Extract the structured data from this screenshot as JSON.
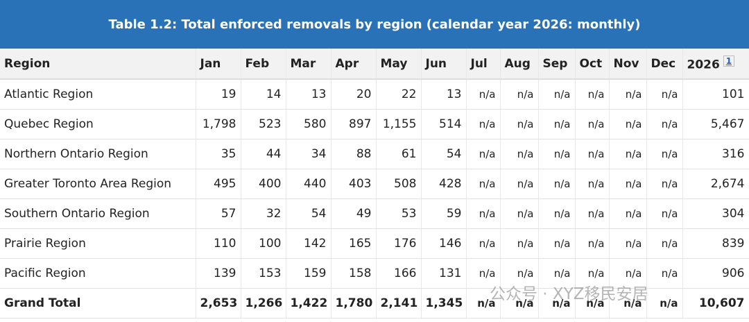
{
  "title": "Table 1.2: Total enforced removals by region (calendar year 2026: monthly)",
  "table": {
    "header": [
      "Region",
      "Jan",
      "Feb",
      "Mar",
      "Apr",
      "May",
      "Jun",
      "Jul",
      "Aug",
      "Sep",
      "Oct",
      "Nov",
      "Dec",
      "2026"
    ],
    "footnote": "1",
    "rows": [
      [
        "Atlantic Region",
        "19",
        "14",
        "13",
        "20",
        "22",
        "13",
        "n/a",
        "n/a",
        "n/a",
        "n/a",
        "n/a",
        "n/a",
        "101"
      ],
      [
        "Quebec Region",
        "1,798",
        "523",
        "580",
        "897",
        "1,155",
        "514",
        "n/a",
        "n/a",
        "n/a",
        "n/a",
        "n/a",
        "n/a",
        "5,467"
      ],
      [
        "Northern Ontario Region",
        "35",
        "44",
        "34",
        "88",
        "61",
        "54",
        "n/a",
        "n/a",
        "n/a",
        "n/a",
        "n/a",
        "n/a",
        "316"
      ],
      [
        "Greater Toronto Area Region",
        "495",
        "400",
        "440",
        "403",
        "508",
        "428",
        "n/a",
        "n/a",
        "n/a",
        "n/a",
        "n/a",
        "n/a",
        "2,674"
      ],
      [
        "Southern Ontario Region",
        "57",
        "32",
        "54",
        "49",
        "53",
        "59",
        "n/a",
        "n/a",
        "n/a",
        "n/a",
        "n/a",
        "n/a",
        "304"
      ],
      [
        "Prairie Region",
        "110",
        "100",
        "142",
        "165",
        "176",
        "146",
        "n/a",
        "n/a",
        "n/a",
        "n/a",
        "n/a",
        "n/a",
        "839"
      ],
      [
        "Pacific Region",
        "139",
        "153",
        "159",
        "158",
        "166",
        "131",
        "n/a",
        "n/a",
        "n/a",
        "n/a",
        "n/a",
        "n/a",
        "906"
      ],
      [
        "Grand Total",
        "2,653",
        "1,266",
        "1,422",
        "1,780",
        "2,141",
        "1,345",
        "n/a",
        "n/a",
        "n/a",
        "n/a",
        "n/a",
        "n/a",
        "10,607"
      ]
    ]
  },
  "watermark": "公众号 · XYZ移民安居"
}
